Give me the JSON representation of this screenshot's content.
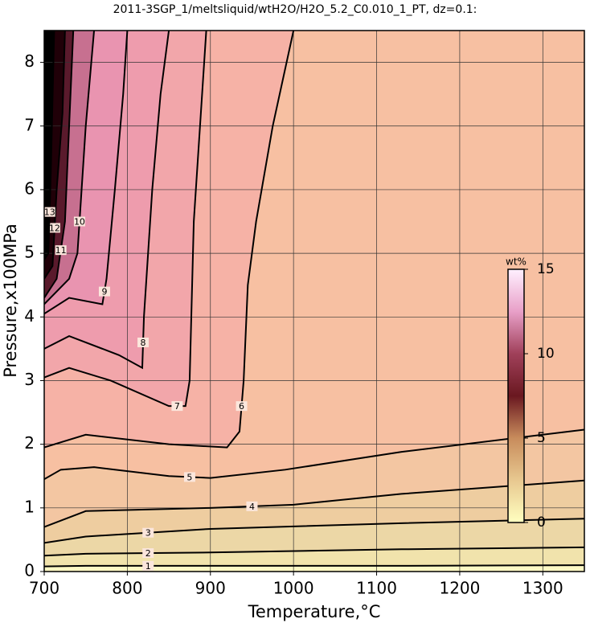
{
  "chart_data": {
    "type": "contour",
    "title": "2011-3SGP_1/meltsliquid/wtH2O/H2O_5.2_C0.010_1_PT, dz=0.1:",
    "xlabel": "Temperature,°C",
    "ylabel": "Pressure,x100MPa",
    "xlim": [
      700,
      1350
    ],
    "ylim": [
      0,
      8.5
    ],
    "xticks": [
      700,
      800,
      900,
      1000,
      1100,
      1200,
      1300
    ],
    "yticks": [
      0,
      1,
      2,
      3,
      4,
      5,
      6,
      7,
      8
    ],
    "grid": true,
    "base_color": "#fdf8c4",
    "contours": [
      {
        "level": 1,
        "fill": "#f1e3ac",
        "x": [
          700,
          750,
          900,
          1130,
          1350
        ],
        "y": [
          0.08,
          0.09,
          0.09,
          0.09,
          0.1
        ]
      },
      {
        "level": 2,
        "fill": "#ecd7a6",
        "x": [
          700,
          750,
          900,
          1130,
          1350
        ],
        "y": [
          0.25,
          0.28,
          0.3,
          0.35,
          0.38
        ]
      },
      {
        "level": 3,
        "fill": "#eecda0",
        "x": [
          700,
          750,
          900,
          1130,
          1350
        ],
        "y": [
          0.45,
          0.55,
          0.67,
          0.76,
          0.83
        ]
      },
      {
        "level": 4,
        "fill": "#f3c6a2",
        "x": [
          700,
          750,
          900,
          1000,
          1130,
          1350
        ],
        "y": [
          0.7,
          0.95,
          1.0,
          1.05,
          1.22,
          1.43
        ]
      },
      {
        "level": 5,
        "fill": "#f7c0a2",
        "x": [
          700,
          720,
          760,
          850,
          900,
          990,
          1130,
          1350
        ],
        "y": [
          1.45,
          1.6,
          1.64,
          1.5,
          1.47,
          1.6,
          1.88,
          2.23
        ]
      },
      {
        "level": 6,
        "fill": "#f6b2a6",
        "x": [
          700,
          750,
          850,
          920,
          935,
          940,
          945,
          955,
          975,
          1000
        ],
        "y": [
          1.95,
          2.15,
          2.0,
          1.95,
          2.2,
          3.0,
          4.5,
          5.5,
          7.0,
          8.5
        ]
      },
      {
        "level": 7,
        "fill": "#f2a6aa",
        "x": [
          700,
          730,
          780,
          850,
          870,
          875,
          880,
          890,
          895
        ],
        "y": [
          3.05,
          3.2,
          3.0,
          2.6,
          2.6,
          3.0,
          5.5,
          7.5,
          8.5
        ]
      },
      {
        "level": 8,
        "fill": "#ee9cad",
        "x": [
          700,
          730,
          790,
          818,
          820,
          830,
          840,
          850
        ],
        "y": [
          3.5,
          3.7,
          3.4,
          3.2,
          4.0,
          6.0,
          7.5,
          8.5
        ]
      },
      {
        "level": 9,
        "fill": "#e994b0",
        "x": [
          700,
          730,
          770,
          775,
          785,
          795,
          800
        ],
        "y": [
          4.05,
          4.3,
          4.2,
          4.6,
          6.0,
          7.5,
          8.5
        ]
      },
      {
        "level": 10,
        "fill": "#c77090",
        "x": [
          700,
          730,
          740,
          745,
          750,
          760
        ],
        "y": [
          4.2,
          4.6,
          5.0,
          6.0,
          7.0,
          8.5
        ]
      },
      {
        "level": 11,
        "fill": "#5a1a2c",
        "x": [
          700,
          715,
          725,
          730,
          735
        ],
        "y": [
          4.3,
          4.6,
          5.5,
          7.0,
          8.5
        ]
      },
      {
        "level": 12,
        "fill": "#200008",
        "x": [
          700,
          710,
          715,
          722,
          725
        ],
        "y": [
          4.6,
          4.8,
          6.0,
          7.2,
          8.5
        ]
      },
      {
        "level": 13,
        "fill": "#000000",
        "x": [
          700,
          705,
          708,
          712
        ],
        "y": [
          4.9,
          5.0,
          6.3,
          8.5
        ]
      }
    ],
    "colorbar": {
      "label": "wt%",
      "lim": [
        0,
        15
      ],
      "ticks": [
        0,
        5,
        10,
        15
      ],
      "colors": [
        "#ffffc0",
        "#e8c890",
        "#c88c5c",
        "#6a1820",
        "#a0405a",
        "#e8a0c8",
        "#fff0ff"
      ]
    }
  }
}
